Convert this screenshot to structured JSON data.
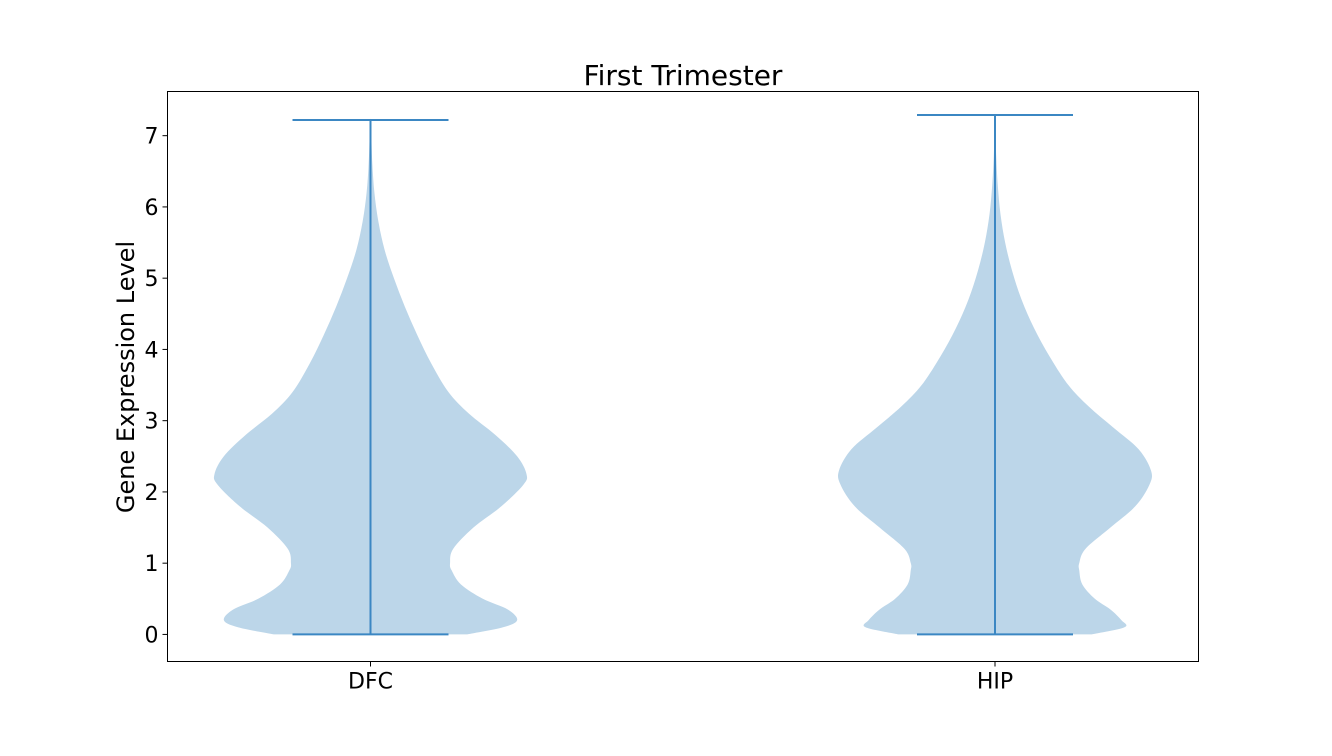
{
  "chart_data": {
    "type": "violin",
    "title": "First Trimester",
    "xlabel": "",
    "ylabel": "Gene Expression Level",
    "ylim": [
      -0.38,
      7.62
    ],
    "yticks": [
      "0",
      "1",
      "2",
      "3",
      "4",
      "5",
      "6",
      "7"
    ],
    "grid": false,
    "colors": {
      "body": "#bcd6e9",
      "line": "#3b87c3"
    },
    "categories": [
      "DFC",
      "HIP"
    ],
    "series": [
      {
        "category": "DFC",
        "min": 0.0,
        "max": 7.22,
        "density_profile": [
          [
            0.0,
            0.62
          ],
          [
            0.1,
            0.85
          ],
          [
            0.2,
            0.94
          ],
          [
            0.35,
            0.88
          ],
          [
            0.5,
            0.72
          ],
          [
            0.7,
            0.58
          ],
          [
            0.9,
            0.52
          ],
          [
            1.0,
            0.51
          ],
          [
            1.2,
            0.53
          ],
          [
            1.5,
            0.66
          ],
          [
            1.8,
            0.84
          ],
          [
            2.1,
            0.98
          ],
          [
            2.25,
            1.0
          ],
          [
            2.5,
            0.94
          ],
          [
            2.8,
            0.8
          ],
          [
            3.1,
            0.63
          ],
          [
            3.4,
            0.5
          ],
          [
            3.8,
            0.39
          ],
          [
            4.2,
            0.3
          ],
          [
            4.6,
            0.22
          ],
          [
            5.0,
            0.15
          ],
          [
            5.4,
            0.09
          ],
          [
            5.8,
            0.05
          ],
          [
            6.2,
            0.025
          ],
          [
            6.6,
            0.012
          ],
          [
            7.0,
            0.005
          ],
          [
            7.22,
            0.0
          ]
        ]
      },
      {
        "category": "HIP",
        "min": 0.0,
        "max": 7.29,
        "density_profile": [
          [
            0.0,
            0.62
          ],
          [
            0.1,
            0.83
          ],
          [
            0.2,
            0.81
          ],
          [
            0.35,
            0.74
          ],
          [
            0.5,
            0.64
          ],
          [
            0.7,
            0.56
          ],
          [
            0.9,
            0.54
          ],
          [
            1.0,
            0.54
          ],
          [
            1.2,
            0.58
          ],
          [
            1.5,
            0.74
          ],
          [
            1.8,
            0.9
          ],
          [
            2.1,
            0.99
          ],
          [
            2.3,
            1.0
          ],
          [
            2.6,
            0.92
          ],
          [
            2.9,
            0.76
          ],
          [
            3.2,
            0.6
          ],
          [
            3.5,
            0.47
          ],
          [
            3.9,
            0.35
          ],
          [
            4.3,
            0.25
          ],
          [
            4.7,
            0.17
          ],
          [
            5.1,
            0.11
          ],
          [
            5.5,
            0.065
          ],
          [
            5.9,
            0.035
          ],
          [
            6.3,
            0.018
          ],
          [
            6.7,
            0.008
          ],
          [
            7.0,
            0.004
          ],
          [
            7.29,
            0.0
          ]
        ]
      }
    ]
  }
}
